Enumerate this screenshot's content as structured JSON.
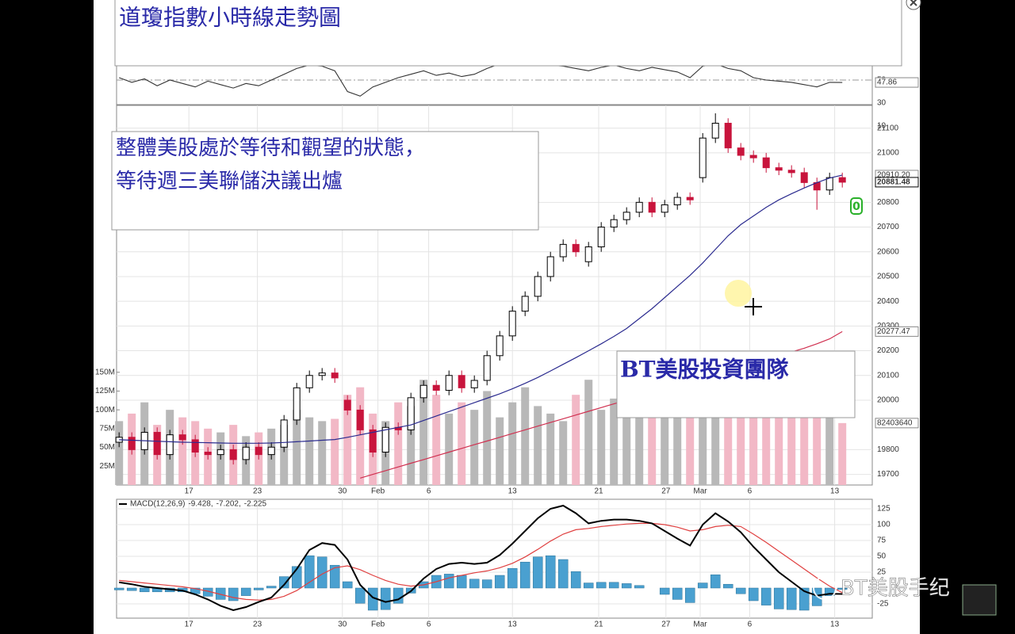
{
  "title_box": {
    "text": "道瓊指數小時線走勢圖"
  },
  "annotations": [
    {
      "lines": [
        "整體美股處於等待和觀望的狀態，",
        "等待週三美聯儲決議出爐"
      ]
    },
    {
      "lines": [
        "BT美股投資團隊"
      ]
    }
  ],
  "watermark": "BT美股手纪",
  "chart_data": [
    {
      "type": "line",
      "xlim": [
        -0.2,
        57.8
      ],
      "ylim": [
        10,
        92
      ],
      "yticks": [
        50,
        30,
        10
      ],
      "ref_line": 50,
      "series": [
        {
          "color": "#333333",
          "last_label": "47.86",
          "values": [
            52,
            48,
            51,
            45,
            50,
            47,
            44,
            49,
            46,
            43,
            47,
            45,
            50,
            55,
            60,
            63,
            62,
            58,
            40,
            36,
            44,
            48,
            52,
            55,
            58,
            54,
            56,
            53,
            55,
            60,
            64,
            66,
            68,
            65,
            63,
            62,
            60,
            58,
            61,
            63,
            60,
            58,
            61,
            59,
            57,
            52,
            62,
            64,
            60,
            58,
            52,
            50,
            49,
            48,
            46,
            44,
            48,
            47.86
          ]
        }
      ]
    },
    {
      "type": "candlestick",
      "xlim": [
        -0.2,
        57.8
      ],
      "ylim": [
        19657,
        21192
      ],
      "grid": true,
      "up_color": "#ffffff",
      "down_color": "#c8143c",
      "close_label": "20881.48",
      "marker_label": "0",
      "yticks": [
        19700,
        19800,
        20000,
        20100,
        20200,
        20300,
        20400,
        20500,
        20600,
        20700,
        20800,
        21000,
        21100
      ],
      "y2lim": [
        0,
        505
      ],
      "y2ticks": [
        {
          "value": 25,
          "label": "25M"
        },
        {
          "value": 50,
          "label": "50M"
        },
        {
          "value": 75,
          "label": "75M"
        },
        {
          "value": 100,
          "label": "100M"
        },
        {
          "value": 125,
          "label": "125M"
        },
        {
          "value": 150,
          "label": "150M"
        }
      ],
      "xticks": [
        {
          "value": 5.5,
          "label": "17"
        },
        {
          "value": 10.9,
          "label": "23"
        },
        {
          "value": 17.6,
          "label": "30"
        },
        {
          "value": 20.4,
          "label": "Feb"
        },
        {
          "value": 24.4,
          "label": "6"
        },
        {
          "value": 31.0,
          "label": "13"
        },
        {
          "value": 37.8,
          "label": "21"
        },
        {
          "value": 43.1,
          "label": "27"
        },
        {
          "value": 45.8,
          "label": "Mar"
        },
        {
          "value": 49.7,
          "label": "6"
        },
        {
          "value": 56.4,
          "label": "13"
        }
      ],
      "open": [
        19830,
        19850,
        19800,
        19870,
        19780,
        19860,
        19840,
        19790,
        19780,
        19800,
        19760,
        19810,
        19780,
        19810,
        19920,
        20050,
        20100,
        20110,
        20000,
        19960,
        19880,
        19790,
        19890,
        19880,
        20010,
        20060,
        20040,
        20100,
        20050,
        20080,
        20180,
        20260,
        20360,
        20420,
        20500,
        20580,
        20630,
        20560,
        20620,
        20700,
        20730,
        20760,
        20800,
        20760,
        20790,
        20820,
        20900,
        21060,
        21120,
        21020,
        20990,
        20980,
        20940,
        20930,
        20920,
        20880,
        20850,
        20900
      ],
      "high": [
        19870,
        19870,
        19890,
        19890,
        19880,
        19880,
        19860,
        19810,
        19820,
        19820,
        19830,
        19830,
        19830,
        19940,
        20070,
        20120,
        20130,
        20130,
        20020,
        19980,
        19900,
        19910,
        19910,
        20030,
        20080,
        20080,
        20120,
        20120,
        20100,
        20200,
        20280,
        20380,
        20440,
        20520,
        20600,
        20650,
        20650,
        20640,
        20720,
        20750,
        20780,
        20820,
        20820,
        20810,
        20840,
        20840,
        21080,
        21160,
        21140,
        21040,
        21010,
        21000,
        20960,
        20950,
        20940,
        20900,
        20920,
        20920
      ],
      "low": [
        19810,
        19780,
        19780,
        19760,
        19760,
        19820,
        19770,
        19760,
        19760,
        19740,
        19740,
        19760,
        19760,
        19790,
        19900,
        20030,
        20080,
        20070,
        19940,
        19860,
        19770,
        19770,
        19860,
        19860,
        19990,
        20020,
        20020,
        20030,
        20030,
        20060,
        20160,
        20240,
        20340,
        20400,
        20480,
        20560,
        20580,
        20540,
        20600,
        20680,
        20710,
        20740,
        20740,
        20740,
        20770,
        20790,
        20880,
        21040,
        21000,
        20970,
        20960,
        20920,
        20910,
        20900,
        20860,
        20770,
        20830,
        20860
      ],
      "close": [
        19850,
        19800,
        19870,
        19780,
        19860,
        19840,
        19790,
        19780,
        19800,
        19760,
        19810,
        19780,
        19810,
        19920,
        20050,
        20100,
        20110,
        20090,
        19960,
        19880,
        19790,
        19890,
        19880,
        20010,
        20060,
        20040,
        20100,
        20050,
        20080,
        20180,
        20260,
        20360,
        20420,
        20500,
        20580,
        20630,
        20600,
        20620,
        20700,
        20730,
        20760,
        20800,
        20760,
        20790,
        20820,
        20810,
        21060,
        21120,
        21020,
        20990,
        20980,
        20940,
        20930,
        20920,
        20880,
        20850,
        20900,
        20881.48
      ],
      "series": [
        {
          "type": "bar",
          "axis": "y2",
          "up_color": "#b8b8b8",
          "down_color": "#f2b8c6",
          "last_label": "82403640",
          "values": [
            85,
            95,
            110,
            80,
            100,
            90,
            85,
            75,
            70,
            80,
            65,
            70,
            75,
            80,
            100,
            90,
            85,
            88,
            120,
            130,
            95,
            85,
            110,
            105,
            140,
            120,
            95,
            110,
            100,
            125,
            90,
            110,
            130,
            105,
            95,
            85,
            120,
            140,
            100,
            115,
            105,
            130,
            95,
            110,
            120,
            100,
            135,
            115,
            125,
            95,
            105,
            110,
            90,
            100,
            120,
            95,
            110,
            82.40364
          ]
        },
        {
          "type": "line",
          "color": "#2b2b8f",
          "last_label": "20910.20",
          "values": [
            19840,
            19838,
            19836,
            19834,
            19832,
            19830,
            19829,
            19828,
            19827,
            19826,
            19826,
            19826,
            19827,
            19829,
            19832,
            19835,
            19838,
            19841,
            19850,
            19860,
            19870,
            19880,
            19890,
            19900,
            19918,
            19936,
            19954,
            19972,
            19990,
            20008,
            20026,
            20046,
            20068,
            20092,
            20118,
            20145,
            20172,
            20200,
            20228,
            20258,
            20290,
            20330,
            20370,
            20415,
            20460,
            20505,
            20555,
            20610,
            20665,
            20710,
            20745,
            20780,
            20810,
            20835,
            20858,
            20880,
            20898,
            20910.2
          ]
        },
        {
          "type": "line",
          "color": "#d03050",
          "last_label": "20277.47",
          "values": [
            null,
            null,
            null,
            null,
            null,
            null,
            null,
            null,
            null,
            null,
            null,
            null,
            null,
            null,
            null,
            null,
            null,
            null,
            null,
            19685,
            19700,
            19715,
            19730,
            19745,
            19760,
            19775,
            19790,
            19805,
            19820,
            19835,
            19850,
            19865,
            19880,
            19895,
            19910,
            19925,
            19940,
            19955,
            19970,
            19985,
            20000,
            20015,
            20030,
            20045,
            20060,
            20075,
            20090,
            20105,
            20120,
            20135,
            20150,
            20165,
            20180,
            20195,
            20210,
            20228,
            20248,
            20277.47
          ]
        }
      ]
    },
    {
      "type": "line",
      "xlim": [
        -0.2,
        57.8
      ],
      "ylim": [
        -47.5,
        140
      ],
      "yticks": [
        125,
        100,
        75,
        50,
        25,
        -25
      ],
      "grid": true,
      "xticks": [
        {
          "value": 5.5,
          "label": "17"
        },
        {
          "value": 10.9,
          "label": "23"
        },
        {
          "value": 17.6,
          "label": "30"
        },
        {
          "value": 20.4,
          "label": "Feb"
        },
        {
          "value": 24.4,
          "label": "6"
        },
        {
          "value": 31.0,
          "label": "13"
        },
        {
          "value": 37.8,
          "label": "21"
        },
        {
          "value": 43.1,
          "label": "27"
        },
        {
          "value": 45.8,
          "label": "Mar"
        },
        {
          "value": 49.7,
          "label": "6"
        },
        {
          "value": 56.4,
          "label": "13"
        }
      ],
      "series": [
        {
          "type": "bar",
          "color": "#4aa0d0",
          "last_label": "-2.225",
          "values": [
            -3,
            -4,
            -6,
            -6,
            -6,
            -6,
            -9,
            -13,
            -18,
            -20,
            -12,
            -3,
            3,
            18,
            34,
            51,
            49,
            36,
            10,
            -24,
            -35,
            -34,
            -24,
            -8,
            10,
            20,
            22,
            20,
            14,
            13,
            20,
            31,
            41,
            49,
            51,
            45,
            26,
            8,
            9,
            9,
            7,
            4,
            0,
            -10,
            -18,
            -23,
            8,
            21,
            6,
            -9,
            -20,
            -27,
            -33,
            -34,
            -35,
            -28,
            -12,
            -2.225
          ]
        },
        {
          "type": "line",
          "color": "#e04040",
          "last_label": "-7.202,",
          "values": [
            12,
            10,
            8,
            6,
            4,
            2,
            -1,
            -5,
            -10,
            -15,
            -18,
            -19,
            -18,
            -13,
            -4,
            9,
            22,
            32,
            35,
            29,
            20,
            12,
            6,
            3,
            5,
            10,
            16,
            20,
            24,
            27,
            32,
            39,
            49,
            61,
            74,
            85,
            92,
            94,
            97,
            99,
            101,
            102,
            102,
            100,
            96,
            90,
            92,
            97,
            99,
            97,
            85,
            72,
            58,
            44,
            30,
            16,
            3,
            -7.202
          ]
        },
        {
          "type": "line",
          "name": "MACD(12,26,9)",
          "color": "#000000",
          "last_label": "-9.428,",
          "values": [
            9,
            6,
            2,
            0,
            -2,
            -4,
            -10,
            -18,
            -28,
            -35,
            -30,
            -22,
            -15,
            5,
            30,
            60,
            71,
            68,
            45,
            5,
            -15,
            -22,
            -18,
            -5,
            15,
            30,
            38,
            40,
            38,
            40,
            52,
            70,
            90,
            110,
            125,
            130,
            118,
            102,
            106,
            108,
            108,
            106,
            102,
            90,
            78,
            67,
            100,
            118,
            105,
            88,
            65,
            45,
            25,
            10,
            -5,
            -12,
            -9,
            -9.428
          ]
        }
      ]
    }
  ]
}
